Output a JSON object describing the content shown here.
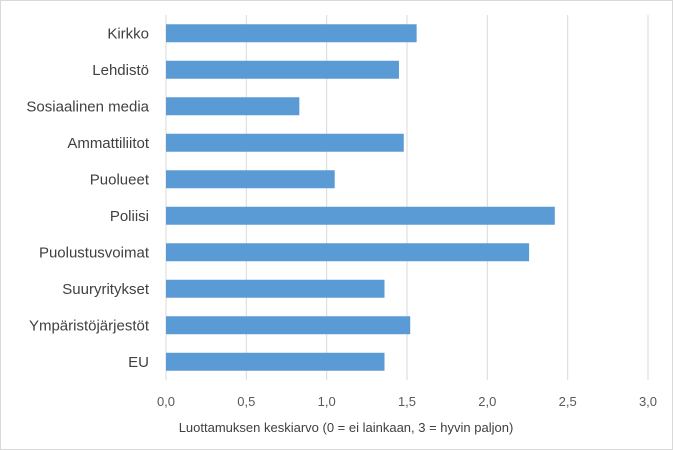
{
  "chart_data": {
    "type": "bar",
    "orientation": "horizontal",
    "categories": [
      "Kirkko",
      "Lehdistö",
      "Sosiaalinen media",
      "Ammattiliitot",
      "Puolueet",
      "Poliisi",
      "Puolustusvoimat",
      "Suuryritykset",
      "Ympäristöjärjestöt",
      "EU"
    ],
    "values": [
      1.56,
      1.45,
      0.83,
      1.48,
      1.05,
      2.42,
      2.26,
      1.36,
      1.52,
      1.36
    ],
    "xlim": [
      0,
      3.0
    ],
    "ticks": [
      "0,0",
      "0,5",
      "1,0",
      "1,5",
      "2,0",
      "2,5",
      "3,0"
    ],
    "xlabel": "Luottamuksen keskiarvo (0 = ei lainkaan, 3 = hyvin paljon)",
    "ylabel": "",
    "title": "",
    "grid": "vertical",
    "bar_color": "#5b9bd5",
    "grid_color": "#d9d9d9"
  }
}
